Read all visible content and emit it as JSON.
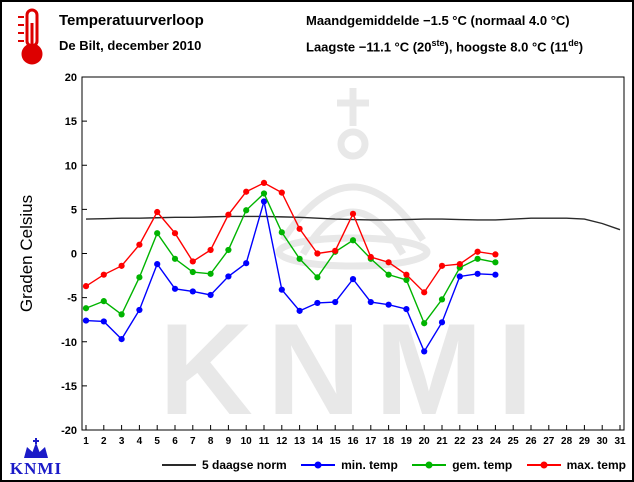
{
  "header": {
    "title": "Temperatuurverloop",
    "subtitle": "De Bilt, december 2010",
    "stats_line1": "Maandgemiddelde −1.5 °C (normaal 4.0 °C)",
    "stats_line2": {
      "p1": "Laagste −11.1 °C (20",
      "sup1": "ste",
      "p2": "), hoogste 8.0 °C (11",
      "sup2": "de",
      "p3": ")"
    }
  },
  "watermark": {
    "text": "KNMI"
  },
  "logo": {
    "text": "KNMI"
  },
  "chart_data": {
    "type": "line",
    "title": "Temperatuurverloop",
    "xlabel": "",
    "ylabel": "Graden Celsius",
    "ylim": [
      -20,
      20
    ],
    "ytick_step": 5,
    "grid": false,
    "legend_position": "bottom",
    "x": [
      1,
      2,
      3,
      4,
      5,
      6,
      7,
      8,
      9,
      10,
      11,
      12,
      13,
      14,
      15,
      16,
      17,
      18,
      19,
      20,
      21,
      22,
      23,
      24,
      25,
      26,
      27,
      28,
      29,
      30,
      31
    ],
    "series": [
      {
        "name": "5 daagse norm",
        "color": "#2a2a2a",
        "marker": false,
        "values": [
          3.9,
          3.95,
          4.0,
          4.0,
          4.05,
          4.1,
          4.1,
          4.15,
          4.2,
          4.2,
          4.2,
          4.15,
          4.1,
          4.0,
          3.9,
          3.85,
          3.8,
          3.8,
          3.85,
          3.9,
          3.9,
          3.85,
          3.8,
          3.8,
          3.9,
          4.0,
          4.0,
          4.0,
          3.9,
          3.4,
          2.7
        ]
      },
      {
        "name": "min. temp",
        "color": "#0000ff",
        "marker": true,
        "values": [
          -7.6,
          -7.7,
          -9.7,
          -6.4,
          -1.2,
          -4.0,
          -4.3,
          -4.7,
          -2.6,
          -1.1,
          5.9,
          -4.1,
          -6.5,
          -5.6,
          -5.5,
          -2.9,
          -5.5,
          -5.8,
          -6.3,
          -11.1,
          -7.8,
          -2.6,
          -2.3,
          -2.4
        ]
      },
      {
        "name": "gem. temp",
        "color": "#00b400",
        "marker": true,
        "values": [
          -6.2,
          -5.4,
          -6.9,
          -2.7,
          2.3,
          -0.6,
          -2.1,
          -2.3,
          0.4,
          4.9,
          6.8,
          2.4,
          -0.6,
          -2.7,
          0.2,
          1.5,
          -0.6,
          -2.4,
          -3.0,
          -7.9,
          -5.2,
          -1.6,
          -0.6,
          -1.0
        ]
      },
      {
        "name": "max. temp",
        "color": "#ff0000",
        "marker": true,
        "values": [
          -3.7,
          -2.4,
          -1.4,
          1.0,
          4.7,
          2.3,
          -0.9,
          0.4,
          4.4,
          7.0,
          8.0,
          6.9,
          2.8,
          0.0,
          0.3,
          4.5,
          -0.4,
          -1.0,
          -2.4,
          -4.4,
          -1.4,
          -1.2,
          0.2,
          -0.1
        ]
      }
    ]
  }
}
